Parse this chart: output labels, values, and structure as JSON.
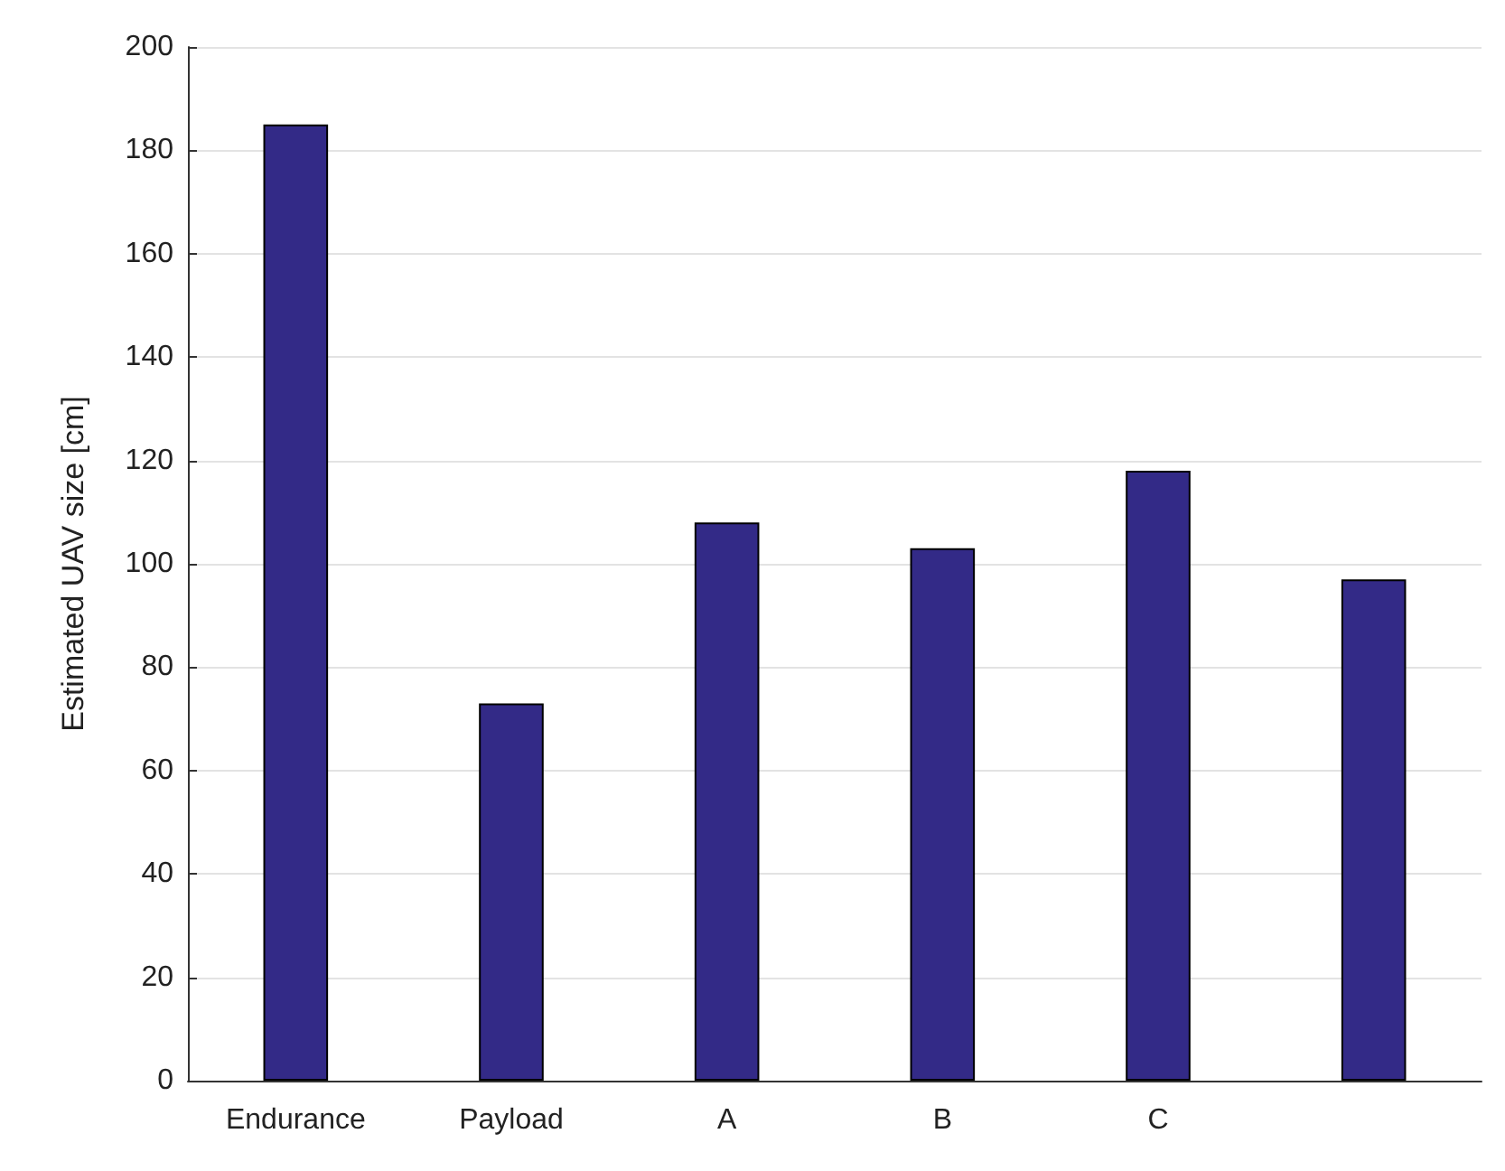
{
  "chart_data": {
    "type": "bar",
    "ylabel": "Estimated UAV size [cm]",
    "categories": [
      "Endurance",
      "Payload",
      "A",
      "B",
      "C",
      null
    ],
    "values": [
      185,
      73,
      108,
      103,
      118,
      97
    ],
    "color": "#332a87",
    "ylim": [
      0,
      200
    ],
    "yticks": [
      0,
      20,
      40,
      60,
      80,
      100,
      120,
      140,
      160,
      180,
      200
    ],
    "grid": "y"
  }
}
